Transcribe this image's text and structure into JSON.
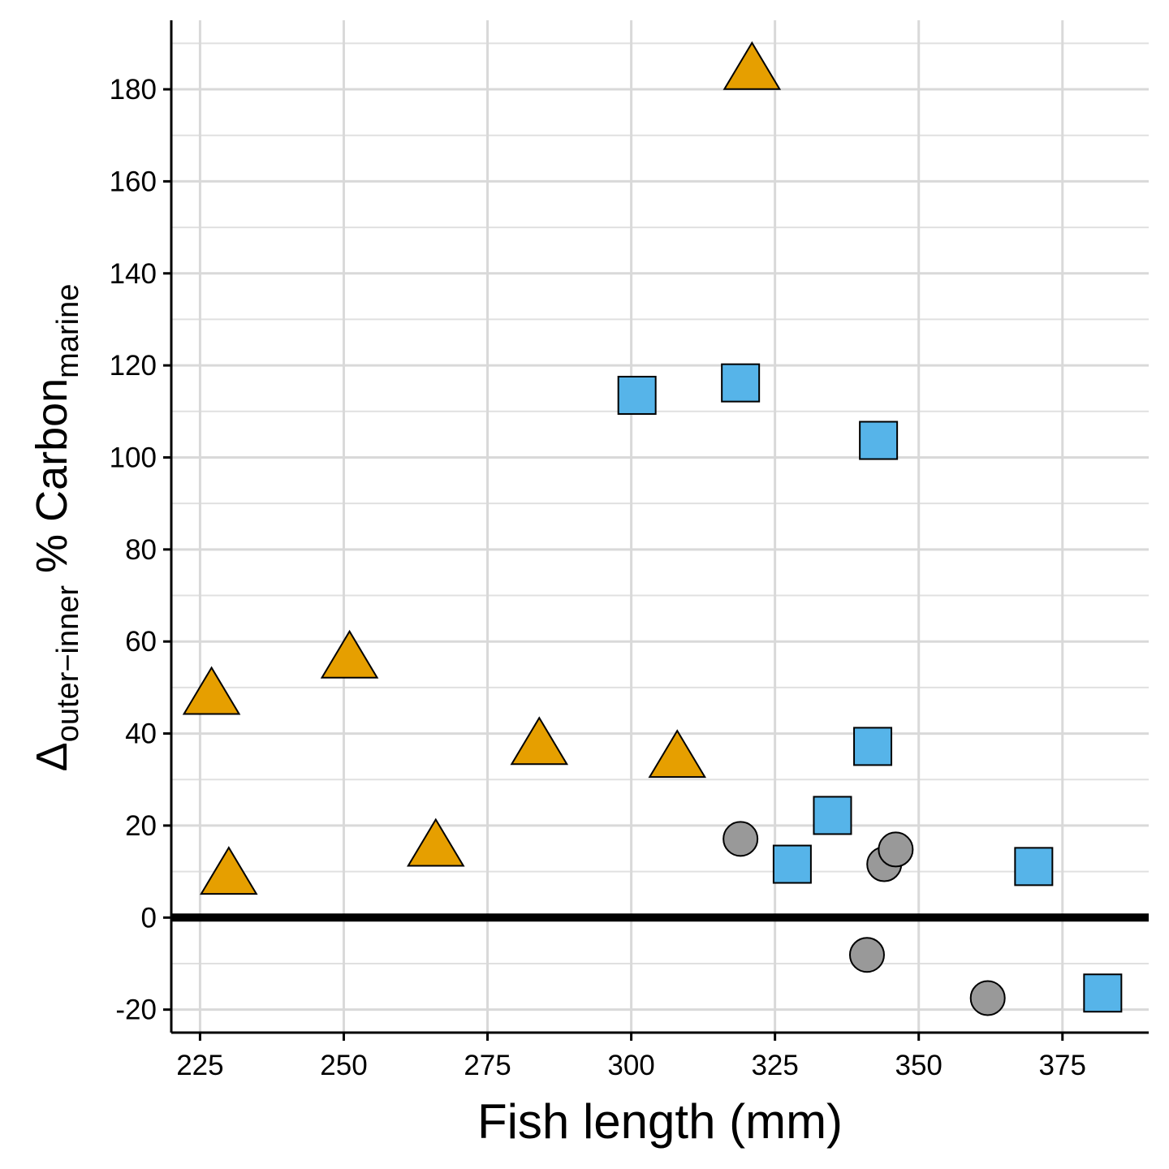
{
  "chart_data": {
    "type": "scatter",
    "x_label": "Fish length (mm)",
    "y_label": {
      "delta": "Δ",
      "delta_sub": "outer−inner",
      "main": " % Carbon",
      "main_sub": "marine"
    },
    "xlim": [
      220,
      390
    ],
    "xticks": [
      225,
      250,
      275,
      300,
      325,
      350,
      375
    ],
    "ylim": [
      -25,
      195
    ],
    "yticks": [
      -20,
      0,
      20,
      40,
      60,
      80,
      100,
      120,
      140,
      160,
      180
    ],
    "y_minor_ticks": [
      -10,
      10,
      30,
      50,
      70,
      90,
      110,
      130,
      150,
      170,
      190
    ],
    "grid": true,
    "hline": 0,
    "series": [
      {
        "shape": "triangle",
        "color": "#E69F00",
        "x": [
          321,
          227,
          230,
          251,
          266,
          284,
          308
        ],
        "values": [
          183.4,
          47.6,
          8.5,
          55.5,
          14.6,
          36.7,
          33.9
        ]
      },
      {
        "shape": "square",
        "color": "#56B4E9",
        "x": [
          301,
          319,
          343,
          342,
          335,
          328,
          370,
          382
        ],
        "values": [
          113.5,
          116.2,
          103.7,
          37.2,
          22.2,
          11.6,
          11.1,
          -16.4
        ]
      },
      {
        "shape": "circle",
        "color": "#999999",
        "x": [
          319,
          344,
          346,
          341,
          362
        ],
        "values": [
          17.1,
          11.6,
          14.8,
          -8.1,
          -17.5
        ]
      }
    ]
  }
}
